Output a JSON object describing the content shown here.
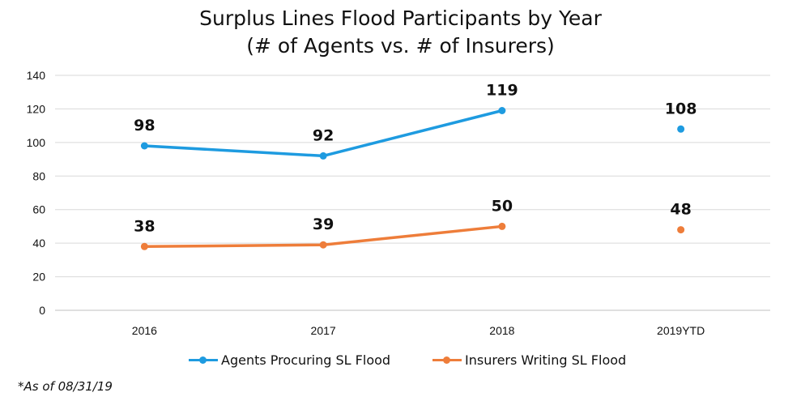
{
  "title_line1": "Surplus Lines Flood Participants by Year",
  "title_line2": "(# of Agents vs. # of Insurers)",
  "footnote": "*As of 08/31/19",
  "colors": {
    "agents": "#1E9BE0",
    "insurers": "#EE7D3A",
    "grid": "#D9D9D9"
  },
  "chart_data": {
    "type": "line",
    "title": "Surplus Lines Flood Participants by Year (# of Agents vs. # of Insurers)",
    "categories": [
      "2016",
      "2017",
      "2018",
      "2019YTD"
    ],
    "ylim": [
      0,
      140
    ],
    "yticks": [
      0,
      20,
      40,
      60,
      80,
      100,
      120,
      140
    ],
    "grid": true,
    "legend_position": "bottom",
    "series": [
      {
        "name": "Agents Procuring SL Flood",
        "values": [
          98,
          92,
          119,
          108
        ],
        "connected_through": 2
      },
      {
        "name": "Insurers Writing SL Flood",
        "values": [
          38,
          39,
          50,
          48
        ],
        "connected_through": 2
      }
    ]
  }
}
